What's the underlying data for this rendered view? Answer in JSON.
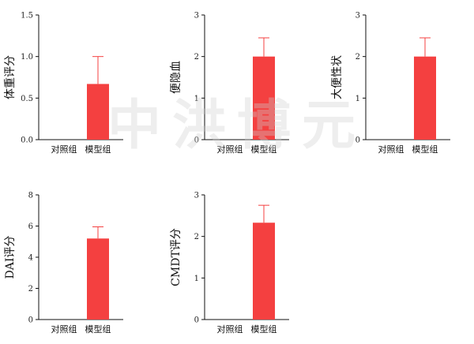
{
  "watermark": "中洪博元",
  "colors": {
    "bar": "#f44040",
    "error": "#f44040",
    "axis": "#111111"
  },
  "chart_data": [
    {
      "type": "bar",
      "ylabel": "体重评分",
      "categories": [
        "对照组",
        "模型组"
      ],
      "values": [
        0,
        0.67
      ],
      "errors": [
        0,
        0.33
      ],
      "ylim": [
        0,
        1.5
      ],
      "yticks": [
        0.0,
        0.5,
        1.0,
        1.5
      ],
      "ytick_labels": [
        "0.0",
        "0.5",
        "1.0",
        "1.5"
      ],
      "grid": false
    },
    {
      "type": "bar",
      "ylabel": "便隐血",
      "categories": [
        "对照组",
        "模型组"
      ],
      "values": [
        0,
        2
      ],
      "errors": [
        0,
        0.45
      ],
      "ylim": [
        0,
        3
      ],
      "yticks": [
        0,
        1,
        2,
        3
      ],
      "ytick_labels": [
        "0",
        "1",
        "2",
        "3"
      ],
      "grid": false
    },
    {
      "type": "bar",
      "ylabel": "大便性状",
      "categories": [
        "对照组",
        "模型组"
      ],
      "values": [
        0,
        2
      ],
      "errors": [
        0,
        0.45
      ],
      "ylim": [
        0,
        3
      ],
      "yticks": [
        0,
        1,
        2,
        3
      ],
      "ytick_labels": [
        "0",
        "1",
        "2",
        "3"
      ],
      "grid": false
    },
    {
      "type": "bar",
      "ylabel": "DAI评分",
      "categories": [
        "对照组",
        "模型组"
      ],
      "values": [
        0,
        5.2
      ],
      "errors": [
        0,
        0.75
      ],
      "ylim": [
        0,
        8
      ],
      "yticks": [
        0,
        2,
        4,
        6,
        8
      ],
      "ytick_labels": [
        "0",
        "2",
        "4",
        "6",
        "8"
      ],
      "grid": false
    },
    {
      "type": "bar",
      "ylabel": "CMDT评分",
      "categories": [
        "对照组",
        "模型组"
      ],
      "values": [
        0,
        2.33
      ],
      "errors": [
        0,
        0.42
      ],
      "ylim": [
        0,
        3
      ],
      "yticks": [
        0,
        1,
        2,
        3
      ],
      "ytick_labels": [
        "0",
        "1",
        "2",
        "3"
      ],
      "grid": false
    }
  ]
}
